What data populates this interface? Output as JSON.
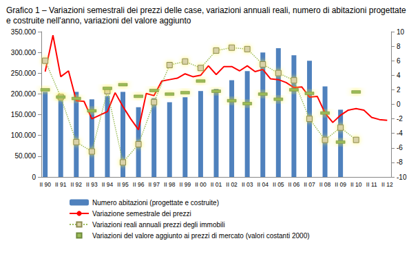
{
  "chart_data": {
    "type": "bar",
    "title": "Grafico 1 – Variazioni semestrali dei prezzi delle case, variazioni annuali reali, numero di abitazioni progettate e costruite nell'anno, variazioni del valore aggiunto",
    "categories": [
      "II 90",
      null,
      "II 91",
      null,
      "II 92",
      null,
      "II 93",
      null,
      "II 94",
      null,
      "II 95",
      null,
      "II 96",
      null,
      "II 97",
      null,
      "II 98",
      null,
      "II 99",
      null,
      "II 00",
      null,
      "II 01",
      null,
      "II 02",
      null,
      "II 03",
      null,
      "II 04",
      null,
      "II 05",
      null,
      "II 06",
      null,
      "II 07",
      null,
      "II 08",
      null,
      "II 09",
      null,
      "II 10",
      null,
      "II 11",
      null,
      "II 12"
    ],
    "ylim": [
      0,
      350000
    ],
    "yticks": [
      {
        "value": 0,
        "label": "0"
      },
      {
        "value": 50000,
        "label": "50.000"
      },
      {
        "value": 100000,
        "label": "100.000"
      },
      {
        "value": 150000,
        "label": "150.000"
      },
      {
        "value": 200000,
        "label": "200.000"
      },
      {
        "value": 250000,
        "label": "250.000"
      },
      {
        "value": 300000,
        "label": "300.000"
      },
      {
        "value": 350000,
        "label": "350.000"
      }
    ],
    "y2lim": [
      -10,
      10
    ],
    "y2ticks": [
      -10,
      -8,
      -6,
      -4,
      -2,
      0,
      2,
      4,
      6,
      8,
      10
    ],
    "grid": false,
    "legend": "bottom",
    "series": [
      {
        "name": "Numero abitazioni (progettate e costruite)",
        "type": "bar",
        "color": "#4f81bd",
        "values": [
          205000,
          null,
          193000,
          null,
          205000,
          null,
          187000,
          null,
          195000,
          null,
          205000,
          null,
          168000,
          null,
          190000,
          null,
          180000,
          null,
          192000,
          null,
          207000,
          null,
          212000,
          null,
          233000,
          null,
          255000,
          null,
          300000,
          null,
          310000,
          null,
          293000,
          null,
          280000,
          null,
          218000,
          null,
          162000,
          null,
          null,
          null,
          null,
          null,
          null
        ]
      },
      {
        "name": "Variazione semestrale dei prezzi",
        "type": "line",
        "axis": "y2",
        "color": "#ff0000",
        "marker": "none",
        "line_style": "solid",
        "values": [
          4.5,
          9.5,
          3.8,
          4.6,
          0.5,
          0.4,
          -2,
          -1.5,
          -1,
          1.6,
          -0.3,
          -2,
          -3.5,
          1.5,
          1.2,
          3.2,
          3.4,
          3.6,
          4.2,
          3.8,
          4.0,
          5.3,
          4.1,
          5.2,
          5.2,
          4.6,
          5.3,
          4.5,
          4.8,
          3.5,
          3.4,
          3.0,
          2.3,
          2.4,
          1.0,
          1.1,
          -1.2,
          -2.5,
          -1.5,
          -0.8,
          -0.6,
          -0.8,
          -1.8,
          -2.1,
          -2.2
        ]
      },
      {
        "name": "Variazioni reali annuali prezzi degli immobili",
        "type": "line",
        "axis": "y2",
        "color": "#9bbb59",
        "marker": "square",
        "line_style": "dotted",
        "values": [
          6,
          null,
          1,
          null,
          -5.2,
          null,
          -6.5,
          null,
          1.8,
          null,
          -8,
          null,
          -5.5,
          null,
          0.3,
          null,
          5.4,
          null,
          5.9,
          null,
          5.0,
          null,
          7.4,
          null,
          7.8,
          null,
          7.6,
          null,
          5.5,
          null,
          4.3,
          null,
          3.3,
          null,
          -2.0,
          null,
          -4.9,
          null,
          -3.2,
          null,
          -4.9,
          null,
          null,
          null,
          null
        ]
      },
      {
        "name": "Variazioni del valore aggiunto ai prezzi di mercato (valori costanti 2000)",
        "type": "line",
        "axis": "y2",
        "color": "#9bbb59",
        "marker": "dash",
        "line_style": "none",
        "values": [
          2,
          null,
          1,
          null,
          0.8,
          null,
          -0.9,
          null,
          2.2,
          null,
          2.7,
          null,
          1.1,
          null,
          1.9,
          null,
          1.4,
          null,
          1.6,
          null,
          3.2,
          null,
          1.8,
          null,
          0.5,
          null,
          0.1,
          null,
          1.4,
          null,
          0.7,
          null,
          2.0,
          null,
          1.5,
          null,
          -1.2,
          null,
          -5.2,
          null,
          1.7,
          null,
          null,
          null,
          null
        ]
      }
    ]
  }
}
